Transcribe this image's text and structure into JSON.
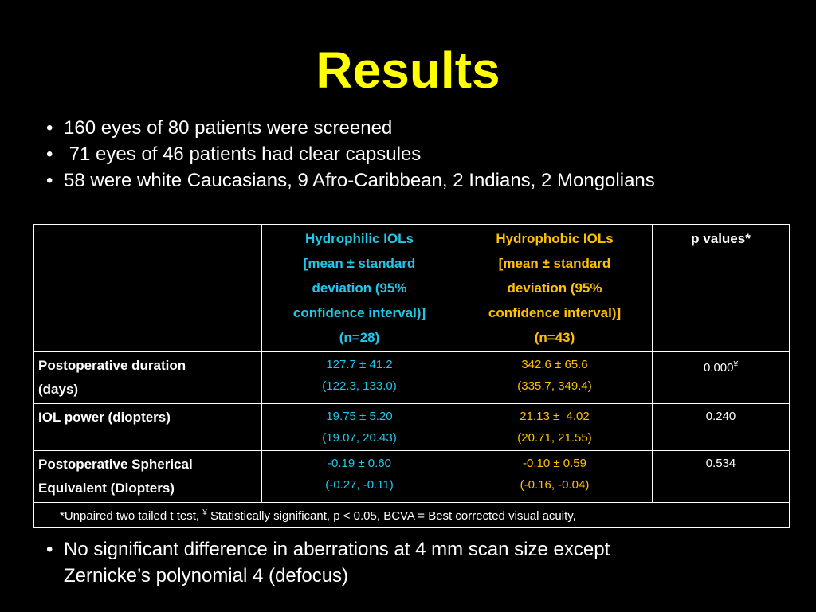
{
  "title": "Results",
  "bullets": [
    "160 eyes of 80 patients were screened",
    " 71 eyes of 46 patients had clear capsules",
    "58 were white Caucasians, 9 Afro-Caribbean, 2 Indians, 2 Mongolians"
  ],
  "table": {
    "headers": {
      "hydrophilic": [
        "Hydrophilic IOLs",
        "[mean ± standard",
        "deviation (95%",
        "confidence interval)]",
        "(n=28)"
      ],
      "hydrophobic": [
        "Hydrophobic IOLs",
        "[mean ± standard",
        "deviation (95%",
        "confidence interval)]",
        "(n=43)"
      ],
      "pvalues": "p values*"
    },
    "rows": [
      {
        "label": [
          "Postoperative duration",
          "(days)"
        ],
        "hydrophilic": [
          "127.7 ± 41.2",
          "(122.3, 133.0)"
        ],
        "hydrophobic": [
          "342.6 ± 65.6",
          "(335.7, 349.4)"
        ],
        "p": "0.000",
        "p_sup": "¥"
      },
      {
        "label": [
          "IOL power (diopters)"
        ],
        "hydrophilic": [
          "19.75 ± 5.20",
          "(19.07, 20.43)"
        ],
        "hydrophobic": [
          "21.13 ±  4.02",
          "(20.71, 21.55)"
        ],
        "p": "0.240"
      },
      {
        "label": [
          "Postoperative Spherical",
          "Equivalent (Diopters)"
        ],
        "hydrophilic": [
          "-0.19 ± 0.60",
          "(-0.27, -0.11)"
        ],
        "hydrophobic": [
          "-0.10 ± 0.59",
          "(-0.16, -0.04)"
        ],
        "p": "0.534"
      }
    ],
    "footnote_part1": "*Unpaired two tailed t test, ",
    "footnote_sup": "¥",
    "footnote_part2": " Statistically significant, p < 0.05, BCVA = Best corrected visual acuity,"
  },
  "bottom_bullet": [
    "No significant difference in aberrations at 4 mm scan size except",
    "Zernicke’s polynomial 4 (defocus)"
  ],
  "bullet_symbol": "•",
  "colors": {
    "title": "#ffff00",
    "hydrophilic": "#22c6e8",
    "hydrophobic": "#ffc000",
    "background": "#000000"
  }
}
